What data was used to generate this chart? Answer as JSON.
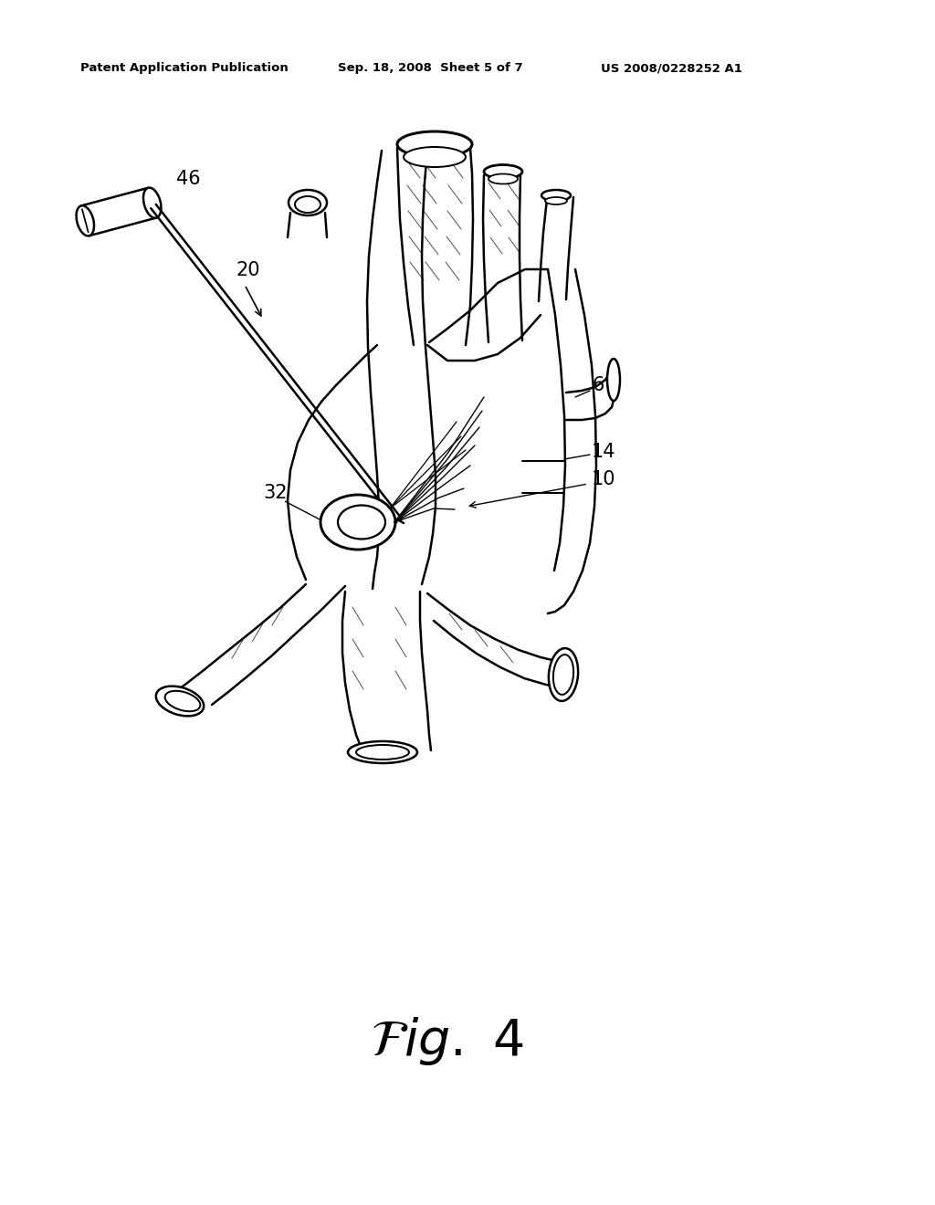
{
  "header_left": "Patent Application Publication",
  "header_mid": "Sep. 18, 2008  Sheet 5 of 7",
  "header_right": "US 2008/0228252 A1",
  "bg_color": "#ffffff",
  "line_color": "#000000",
  "lw": 1.8
}
